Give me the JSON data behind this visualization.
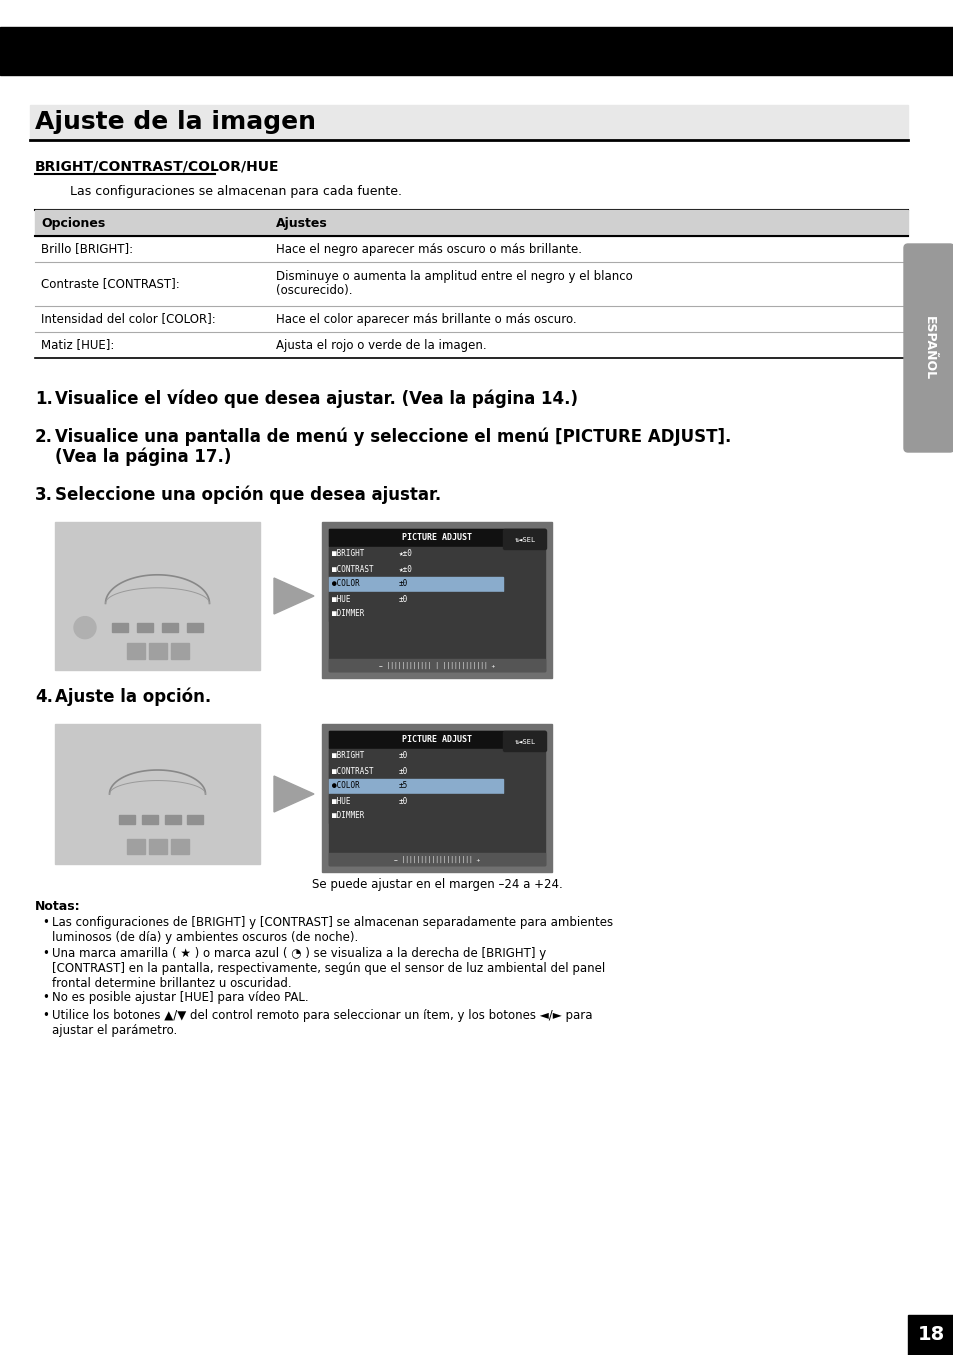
{
  "page_bg": "#ffffff",
  "header_bar_color": "#000000",
  "title": "Ajuste de la imagen",
  "title_bg": "#e8e8e8",
  "section_heading": "BRIGHT/CONTRAST/COLOR/HUE",
  "intro_text": "Las configuraciones se almacenan para cada fuente.",
  "table_header_bg": "#d0d0d0",
  "table_col1_header": "Opciones",
  "table_col2_header": "Ajustes",
  "table_rows": [
    [
      "Brillo [BRIGHT]:",
      "Hace el negro aparecer más oscuro o más brillante."
    ],
    [
      "Contraste [CONTRAST]:",
      "Disminuye o aumenta la amplitud entre el negro y el blanco\n(oscurecido)."
    ],
    [
      "Intensidad del color [COLOR]:",
      "Hace el color aparecer más brillante o más oscuro."
    ],
    [
      "Matiz [HUE]:",
      "Ajusta el rojo o verde de la imagen."
    ]
  ],
  "sidebar_text": "ESPAÑOL",
  "sidebar_bg": "#999999",
  "note_title": "Notas:",
  "notes": [
    "Las configuraciones de [BRIGHT] y [CONTRAST] se almacenan separadamente para ambientes\nluminosos (de día) y ambientes oscuros (de noche).",
    "Una marca amarilla ( ★ ) o marca azul ( ◔ ) se visualiza a la derecha de [BRIGHT] y\n[CONTRAST] en la pantalla, respectivamente, según que el sensor de luz ambiental del panel\nfrontal determine brillantez u oscuridad.",
    "No es posible ajustar [HUE] para vídeo PAL.",
    "Utilice los botones ▲/▼ del control remoto para seleccionar un ítem, y los botones ◄/► para\najustar el parámetro."
  ],
  "page_num": "18",
  "caption": "Se puede ajustar en el margen –24 a +24.",
  "step1": "Visualice el vídeo que desea ajustar. (Vea la página 14.)",
  "step2a": "Visualice una pantalla de menú y seleccione el menú [PICTURE ADJUST].",
  "step2b": "(Vea la página 17.)",
  "step3": "Seleccione una opción que desea ajustar.",
  "step4": "Ajuste la opción."
}
